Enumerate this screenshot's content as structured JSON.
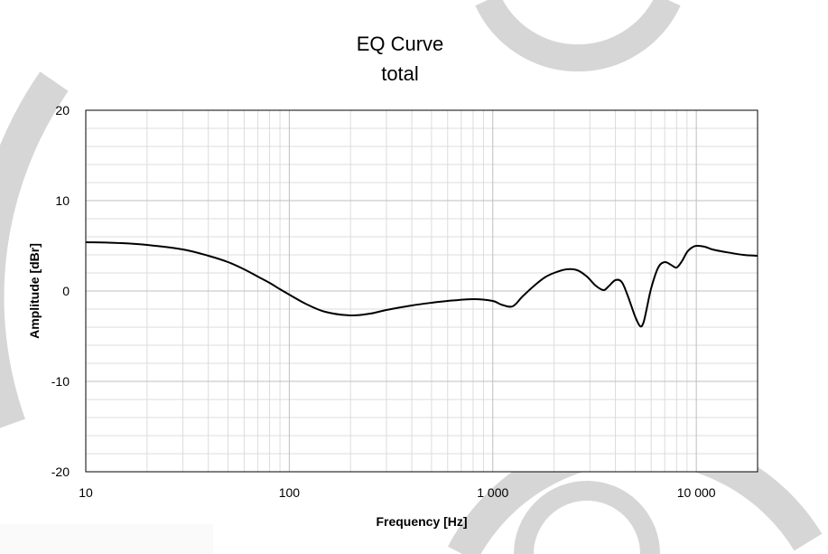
{
  "chart_data": {
    "type": "line",
    "title": "EQ Curve",
    "subtitle": "total",
    "xlabel": "Frequency [Hz]",
    "ylabel": "Amplitude [dBr]",
    "xscale": "log",
    "xlim": [
      10,
      20000
    ],
    "ylim": [
      -20,
      20
    ],
    "x_ticks": [
      10,
      100,
      1000,
      10000
    ],
    "x_tick_labels": [
      "10",
      "100",
      "1 000",
      "10 000"
    ],
    "y_ticks": [
      20,
      10,
      0,
      -10,
      -20
    ],
    "y_tick_labels": [
      "20",
      "10",
      "0",
      "-10",
      "-20"
    ],
    "grid": true,
    "legend": "none",
    "line_color": "#000000",
    "series": [
      {
        "x": [
          10,
          15,
          20,
          30,
          40,
          50,
          60,
          70,
          80,
          90,
          100,
          120,
          150,
          200,
          250,
          300,
          400,
          500,
          600,
          800,
          1000,
          1100,
          1250,
          1400,
          1600,
          1800,
          2000,
          2300,
          2600,
          2900,
          3200,
          3500,
          3700,
          4000,
          4300,
          4600,
          5000,
          5300,
          5500,
          5700,
          6000,
          6500,
          7000,
          7500,
          8000,
          8500,
          9000,
          9500,
          10000,
          11000,
          12000,
          14000,
          17000,
          20000
        ],
        "y": [
          5.4,
          5.3,
          5.1,
          4.6,
          3.9,
          3.2,
          2.4,
          1.6,
          0.9,
          0.2,
          -0.4,
          -1.4,
          -2.3,
          -2.7,
          -2.5,
          -2.1,
          -1.6,
          -1.3,
          -1.1,
          -0.9,
          -1.1,
          -1.5,
          -1.7,
          -0.6,
          0.6,
          1.5,
          2.0,
          2.4,
          2.3,
          1.6,
          0.6,
          0.1,
          0.5,
          1.2,
          1.0,
          -0.5,
          -2.8,
          -3.9,
          -3.5,
          -2.0,
          0.3,
          2.6,
          3.2,
          2.9,
          2.6,
          3.3,
          4.3,
          4.8,
          5.0,
          4.9,
          4.6,
          4.3,
          4.0,
          3.9
        ]
      }
    ]
  }
}
